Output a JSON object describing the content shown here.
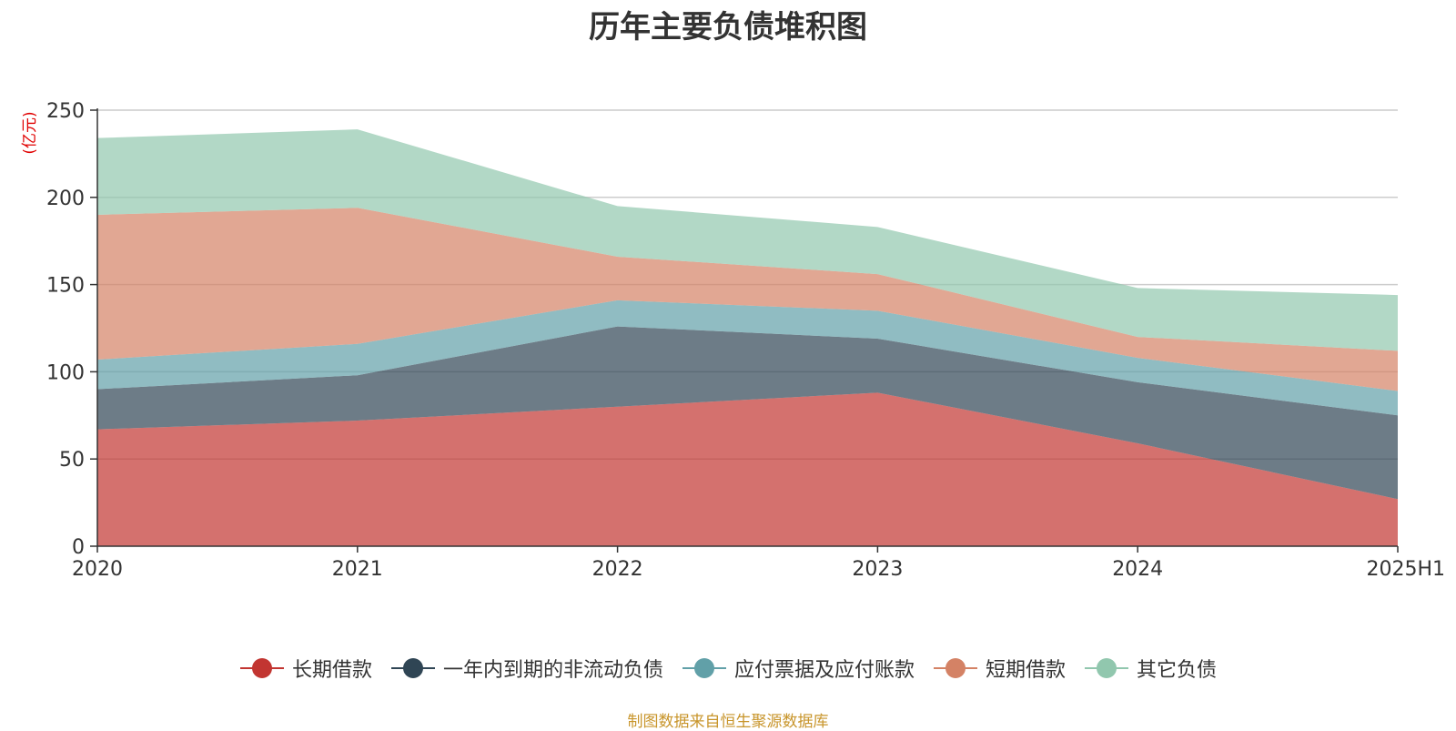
{
  "chart_data": {
    "type": "area",
    "stacked": true,
    "title": "历年主要负债堆积图",
    "unit_label": "(亿元)",
    "categories": [
      "2020",
      "2021",
      "2022",
      "2023",
      "2024",
      "2025H1"
    ],
    "ylim": [
      0,
      250
    ],
    "yticks": [
      0,
      50,
      100,
      150,
      200,
      250
    ],
    "grid": true,
    "legend_position": "bottom",
    "series": [
      {
        "name": "长期借款",
        "color": "#c23531",
        "values": [
          67,
          72,
          80,
          88,
          59,
          27
        ]
      },
      {
        "name": "一年内到期的非流动负债",
        "color": "#2f4554",
        "values": [
          23,
          26,
          46,
          31,
          35,
          48
        ]
      },
      {
        "name": "应付票据及应付账款",
        "color": "#61a0a8",
        "values": [
          17,
          18,
          15,
          16,
          14,
          14
        ]
      },
      {
        "name": "短期借款",
        "color": "#d48265",
        "values": [
          83,
          78,
          25,
          21,
          12,
          23
        ]
      },
      {
        "name": "其它负债",
        "color": "#91c7ae",
        "values": [
          44,
          45,
          29,
          27,
          28,
          32
        ]
      }
    ],
    "source_note": "制图数据来自恒生聚源数据库"
  }
}
